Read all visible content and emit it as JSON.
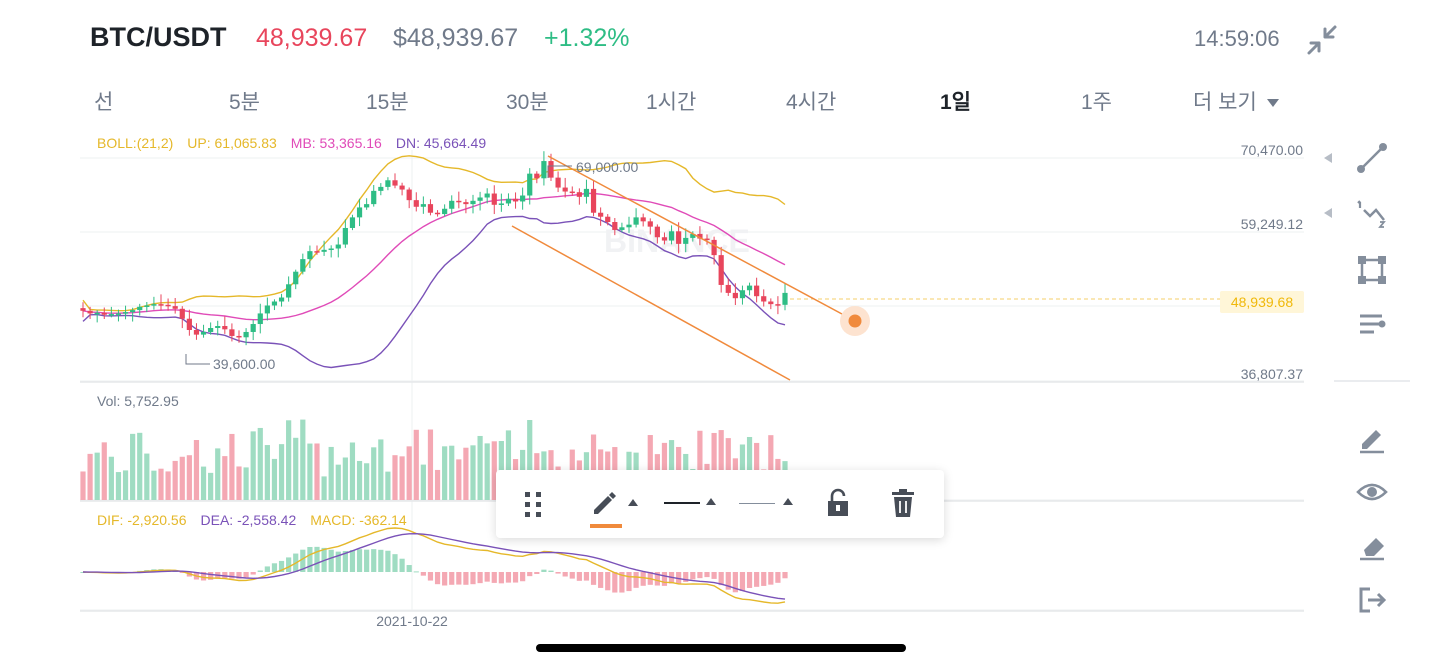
{
  "header": {
    "pair": "BTC/USDT",
    "last_price": "48,939.67",
    "usd_price": "$48,939.67",
    "change_pct": "+1.32%",
    "clock": "14:59:06",
    "collapse_icon": "collapse-arrows-icon"
  },
  "tabs": [
    {
      "label": "선",
      "active": false
    },
    {
      "label": "5분",
      "active": false
    },
    {
      "label": "15분",
      "active": false
    },
    {
      "label": "30분",
      "active": false
    },
    {
      "label": "1시간",
      "active": false
    },
    {
      "label": "4시간",
      "active": false
    },
    {
      "label": "1일",
      "active": true
    },
    {
      "label": "1주",
      "active": false
    },
    {
      "label": "더 보기",
      "active": false
    }
  ],
  "indicators": {
    "boll": {
      "name": "BOLL:(21,2)",
      "up": "UP: 61,065.83",
      "mb": "MB: 53,365.16",
      "dn": "DN: 45,664.49"
    },
    "vol": {
      "label": "Vol: 5,752.95"
    },
    "macd": {
      "dif": "DIF: -2,920.56",
      "dea": "DEA: -2,558.42",
      "macd": "MACD: -362.14"
    }
  },
  "y_axis": [
    "70,470.00",
    "59,249.12",
    "48,939.68",
    "36,807.37"
  ],
  "annotations": {
    "high": "69,000.00",
    "low": "39,600.00"
  },
  "x_axis": {
    "date_label": "2021-10-22"
  },
  "watermark": "BINANCE",
  "colors": {
    "up": "#2ebd85",
    "down": "#e8455c",
    "boll_up": "#e5b82a",
    "boll_mb": "#e04bb8",
    "boll_dn": "#7a52b8",
    "trend": "#f08a3c",
    "muted": "#707a8a"
  },
  "sidebar_tools": [
    "trend-line-icon",
    "fibonacci-icon",
    "rectangle-icon",
    "parallel-channel-icon",
    "brush-icon",
    "eye-icon",
    "eraser-icon",
    "exit-icon"
  ],
  "toolbar_tools": [
    "drag-handle-icon",
    "pencil-color-icon",
    "line-style-icon",
    "line-width-icon",
    "unlock-icon",
    "trash-icon"
  ],
  "chart_data": {
    "type": "candlestick",
    "title": "",
    "price_axis_labels": [
      70470.0,
      59249.12,
      48939.68,
      36807.37
    ],
    "current_price": 48939.68,
    "bollinger": {
      "period": 21,
      "mult": 2,
      "up": 61065.83,
      "mb": 53365.16,
      "dn": 45664.49
    },
    "high_mark": 69000.0,
    "low_mark": 39600.0,
    "volume": 5752.95,
    "macd": {
      "dif": -2920.56,
      "dea": -2558.42,
      "hist": -362.14
    },
    "x_label": "2021-10-22",
    "close_series": [
      46200,
      45800,
      45900,
      45600,
      45700,
      45800,
      46000,
      46300,
      46800,
      47000,
      47200,
      47100,
      46900,
      46500,
      45000,
      43300,
      42600,
      43000,
      43600,
      43900,
      43400,
      42400,
      42200,
      43000,
      44200,
      45800,
      47000,
      47600,
      48200,
      50200,
      52100,
      54000,
      55200,
      55100,
      55400,
      55600,
      56200,
      58700,
      60300,
      61800,
      62300,
      64300,
      64900,
      65900,
      65100,
      64500,
      62900,
      61900,
      62300,
      61000,
      60800,
      61600,
      62800,
      62600,
      62300,
      62800,
      63300,
      63900,
      62200,
      62400,
      63100,
      62700,
      63600,
      66900,
      66200,
      68800,
      66300,
      64800,
      64200,
      64100,
      63400,
      64600,
      61000,
      60400,
      59600,
      58400,
      58800,
      59200,
      60300,
      59700,
      58900,
      57300,
      56800,
      58200,
      56300,
      57200,
      57800,
      57100,
      56900,
      54600,
      50100,
      48900,
      48100,
      49300,
      50000,
      48400,
      47600,
      47200,
      47100,
      48900
    ]
  }
}
